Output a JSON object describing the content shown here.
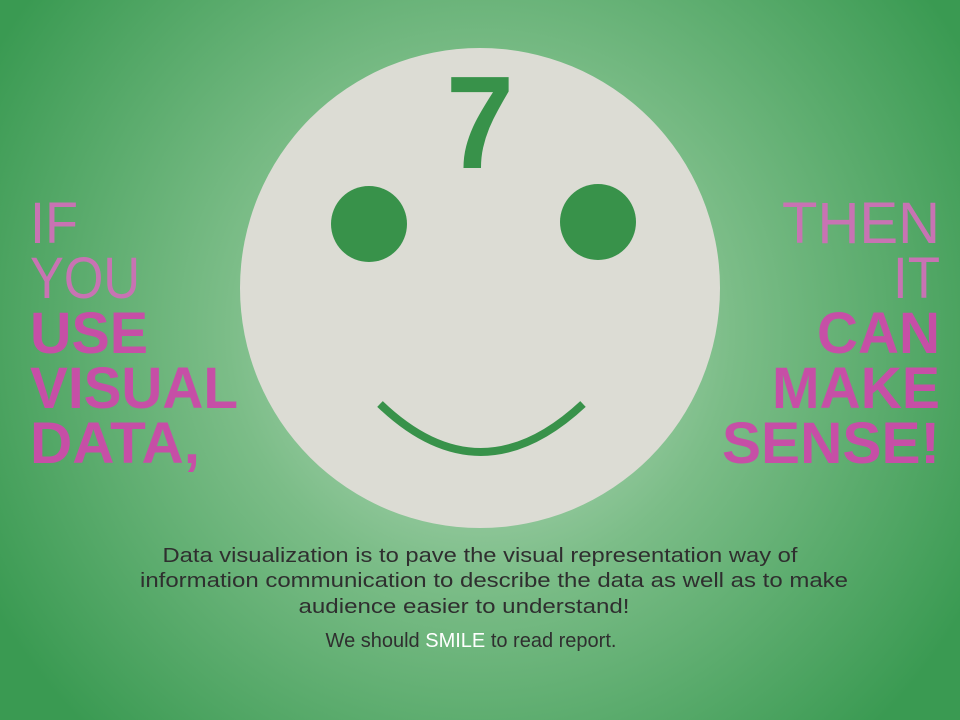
{
  "face": {
    "number": "7"
  },
  "left_text": {
    "lines": [
      "IF",
      "YOU",
      "USE",
      "VISUAL",
      "DATA,"
    ]
  },
  "right_text": {
    "lines": [
      "THEN",
      "IT",
      "CAN",
      "MAKE",
      "SENSE!"
    ]
  },
  "paragraph": {
    "lines": [
      "Data visualization is to pave the visual representation way of",
      "information communication to describe the data as well as to make",
      "audience easier to understand!"
    ]
  },
  "closing": {
    "before": "We should ",
    "highlight": "SMILE",
    "after": " to read report."
  }
}
